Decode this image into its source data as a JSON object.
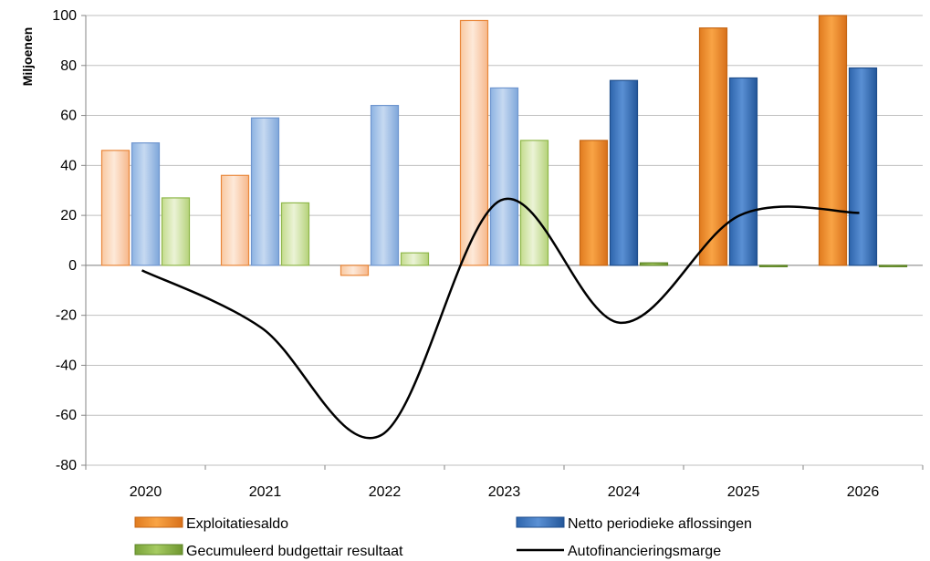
{
  "chart_data": {
    "type": "bar",
    "categories": [
      "2020",
      "2021",
      "2022",
      "2023",
      "2024",
      "2025",
      "2026"
    ],
    "ylabel": "Miljoenen",
    "xlabel": "",
    "ylim": [
      -80,
      100
    ],
    "yticks": [
      -80,
      -60,
      -40,
      -20,
      0,
      20,
      40,
      60,
      80,
      100
    ],
    "grid": true,
    "legend_position": "bottom",
    "projection_start_category": "2024",
    "series": [
      {
        "name": "Exploitatiesaldo",
        "type": "bar",
        "color": "#F79646",
        "values": [
          46,
          36,
          -4,
          98,
          50,
          95,
          100
        ]
      },
      {
        "name": "Netto periodieke aflossingen",
        "type": "bar",
        "color": "#4F81BD",
        "values": [
          49,
          59,
          64,
          71,
          74,
          75,
          79
        ]
      },
      {
        "name": "Gecumuleerd budgettair resultaat",
        "type": "bar",
        "color": "#9BBB59",
        "values": [
          27,
          25,
          5,
          50,
          1,
          0,
          0
        ]
      },
      {
        "name": "Autofinancieringsmarge",
        "type": "line",
        "color": "#000000",
        "values": [
          -2,
          -25,
          -68,
          26,
          -23,
          20,
          21
        ]
      }
    ]
  }
}
